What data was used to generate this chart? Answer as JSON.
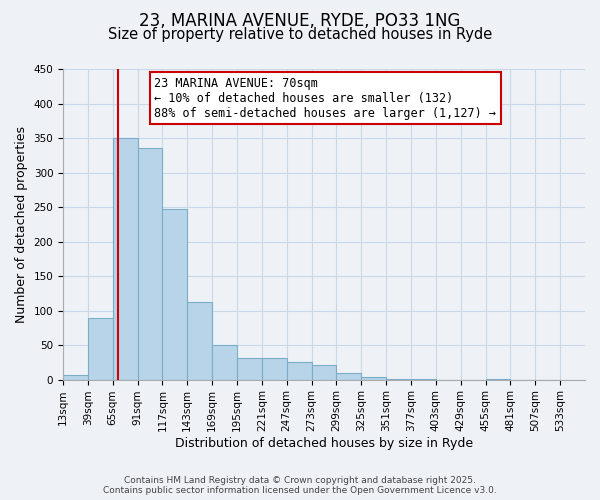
{
  "title_line1": "23, MARINA AVENUE, RYDE, PO33 1NG",
  "title_line2": "Size of property relative to detached houses in Ryde",
  "xlabel": "Distribution of detached houses by size in Ryde",
  "ylabel": "Number of detached properties",
  "bar_values": [
    7,
    89,
    350,
    335,
    247,
    113,
    50,
    32,
    31,
    25,
    21,
    10,
    4,
    1,
    1,
    0,
    0,
    1,
    0,
    0
  ],
  "bin_labels": [
    "13sqm",
    "39sqm",
    "65sqm",
    "91sqm",
    "117sqm",
    "143sqm",
    "169sqm",
    "195sqm",
    "221sqm",
    "247sqm",
    "273sqm",
    "299sqm",
    "325sqm",
    "351sqm",
    "377sqm",
    "403sqm",
    "429sqm",
    "455sqm",
    "481sqm",
    "507sqm",
    "533sqm"
  ],
  "bin_edges": [
    13,
    39,
    65,
    91,
    117,
    143,
    169,
    195,
    221,
    247,
    273,
    299,
    325,
    351,
    377,
    403,
    429,
    455,
    481,
    507,
    533
  ],
  "bar_color": "#b8d4e8",
  "bar_edge_color": "#7aaec8",
  "ylim": [
    0,
    450
  ],
  "yticks": [
    0,
    50,
    100,
    150,
    200,
    250,
    300,
    350,
    400,
    450
  ],
  "property_label": "23 MARINA AVENUE: 70sqm",
  "annotation_line1": "← 10% of detached houses are smaller (132)",
  "annotation_line2": "88% of semi-detached houses are larger (1,127) →",
  "vline_x": 70,
  "vline_color": "#cc0000",
  "annotation_box_color": "#ffffff",
  "annotation_box_edge": "#cc0000",
  "grid_color": "#c8d8e8",
  "background_color": "#eef2f7",
  "footer_line1": "Contains HM Land Registry data © Crown copyright and database right 2025.",
  "footer_line2": "Contains public sector information licensed under the Open Government Licence v3.0.",
  "title_fontsize": 12,
  "subtitle_fontsize": 10.5,
  "axis_label_fontsize": 9,
  "tick_fontsize": 7.5,
  "annotation_fontsize": 8.5,
  "footer_fontsize": 6.5
}
